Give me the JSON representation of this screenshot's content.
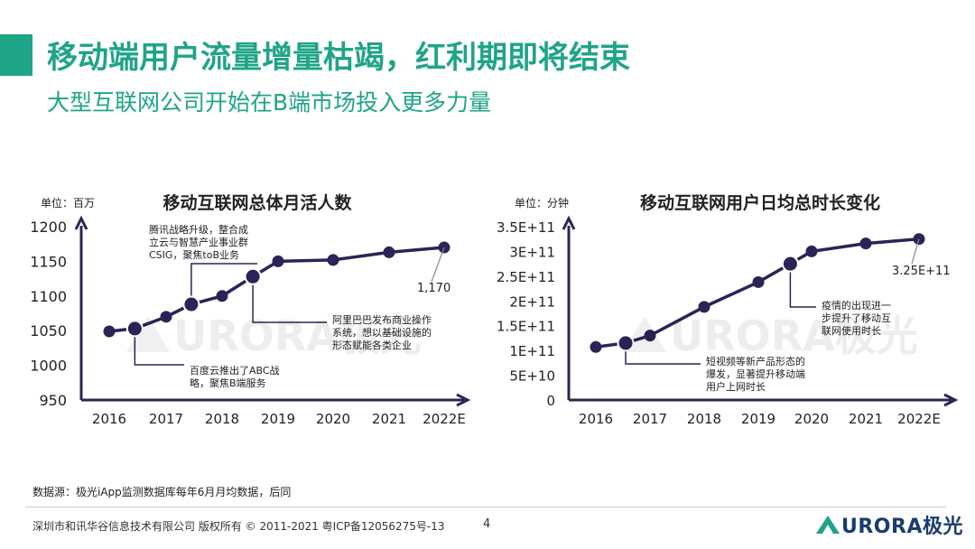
{
  "page": {
    "title": "移动端用户流量增量枯竭，红利期即将结束",
    "subtitle": "大型互联网公司开始在B端市场投入更多力量",
    "source": "数据源：极光iApp监测数据库每年6月月均数据，后同",
    "footer": "深圳市和讯华谷信息技术有限公司 版权所有 © 2011-2021 粤ICP备12056275号-13",
    "page_number": "4",
    "logo_text": "URORA极光",
    "watermark_text": "URORA极光"
  },
  "colors": {
    "accent": "#1fa488",
    "axis": "#2b2456",
    "line": "#2b2456",
    "callout": "#2b2456",
    "logo": "#1a3c6e"
  },
  "chart_data": [
    {
      "type": "line",
      "title": "移动互联网总体月活人数",
      "unit_label": "单位：百万",
      "x_ticks": [
        "2016",
        "2017",
        "2018",
        "2019",
        "2020",
        "2021",
        "2022E"
      ],
      "y_ticks": [
        "950",
        "1000",
        "1050",
        "1100",
        "1150",
        "1200"
      ],
      "ylim": [
        950,
        1200
      ],
      "x": [
        2016.0,
        2016.45,
        2017.0,
        2017.45,
        2018.0,
        2018.55,
        2019.0,
        2020.0,
        2021.0,
        2022.0
      ],
      "y": [
        1049,
        1053,
        1070,
        1088,
        1100,
        1128,
        1150,
        1152,
        1163,
        1170
      ],
      "highlight": [
        1,
        3,
        5
      ],
      "end_label": "1,170",
      "callouts": [
        {
          "text": [
            "腾讯战略升级，整合成",
            "立云与智慧产业事业群",
            "CSIG，聚焦toB业务"
          ],
          "point": 3
        },
        {
          "text": [
            "阿里巴巴发布商业操作",
            "系统，想以基础设施的",
            "形态赋能各类企业"
          ],
          "point": 5
        },
        {
          "text": [
            "百度云推出了ABC战",
            "略，聚焦B端服务"
          ],
          "point": 1
        }
      ]
    },
    {
      "type": "line",
      "title": "移动互联网用户日均总时长变化",
      "unit_label": "单位：分钟",
      "x_ticks": [
        "2016",
        "2017",
        "2018",
        "2019",
        "2020",
        "2021",
        "2022E"
      ],
      "y_ticks": [
        "0",
        "5E+10",
        "1E+11",
        "1.5E+11",
        "2E+11",
        "2.5E+11",
        "3E+11",
        "3.5E+11"
      ],
      "ylim": [
        0,
        350000000000
      ],
      "x": [
        2016.0,
        2016.55,
        2017.0,
        2018.0,
        2019.0,
        2019.6,
        2020.0,
        2021.0,
        2022.0
      ],
      "y": [
        107000000000,
        115000000000,
        130000000000,
        188000000000,
        238000000000,
        275000000000,
        300000000000,
        316000000000,
        325000000000
      ],
      "highlight": [
        1,
        5
      ],
      "end_label": "3.25E+11",
      "callouts": [
        {
          "text": [
            "短视频等新产品形态的",
            "爆发，显著提升移动端",
            "用户上网时长"
          ],
          "point": 1
        },
        {
          "text": [
            "疫情的出现进一",
            "步提升了移动互",
            "联网使用时长"
          ],
          "point": 5
        }
      ]
    }
  ]
}
